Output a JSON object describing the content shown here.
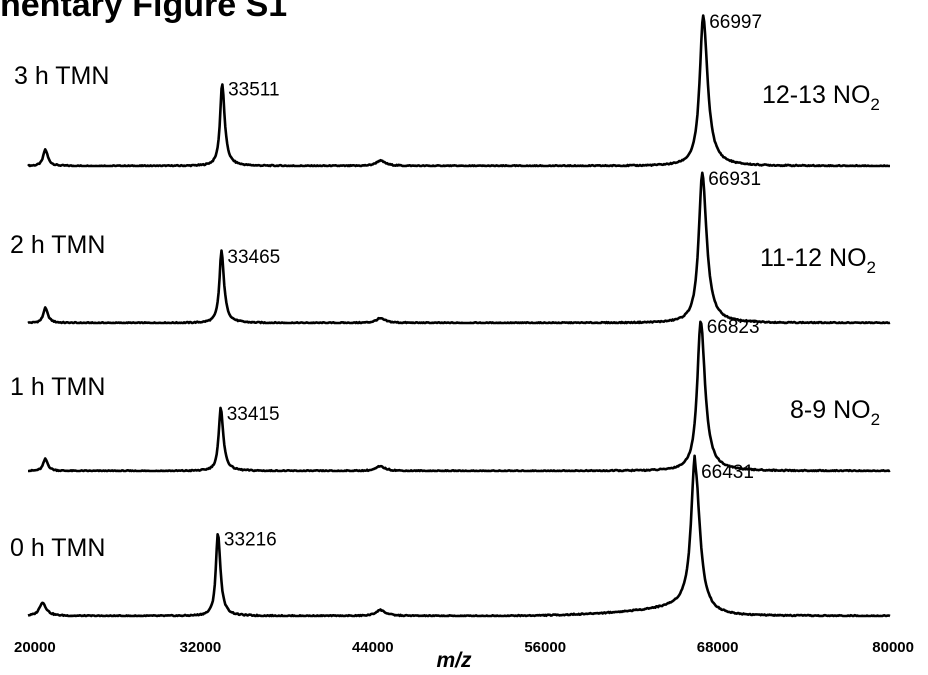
{
  "figure": {
    "title": "nentary Figure S1"
  },
  "chart_data": {
    "type": "line",
    "xlabel": "m/z",
    "xlim": [
      20000,
      80000
    ],
    "xticks": [
      "20000",
      "32000",
      "44000",
      "56000",
      "68000",
      "80000"
    ],
    "panels": [
      {
        "name": "3 h TMN",
        "nitration": "12-13 NO",
        "nitration_sub": "2",
        "peaks": [
          {
            "mz": 21200,
            "rel_height": 0.11,
            "width": 170
          },
          {
            "mz": 33511,
            "label": "33511",
            "rel_height": 0.55,
            "width": 170
          },
          {
            "mz": 44500,
            "rel_height": 0.035,
            "width": 350
          },
          {
            "mz": 66997,
            "label": "66997",
            "rel_height": 1.0,
            "width": 290
          }
        ]
      },
      {
        "name": "2 h TMN",
        "nitration": "11-12 NO",
        "nitration_sub": "2",
        "peaks": [
          {
            "mz": 21200,
            "rel_height": 0.1,
            "width": 170
          },
          {
            "mz": 33465,
            "label": "33465",
            "rel_height": 0.48,
            "width": 170
          },
          {
            "mz": 44500,
            "rel_height": 0.03,
            "width": 350
          },
          {
            "mz": 66931,
            "label": "66931",
            "rel_height": 1.0,
            "width": 290
          }
        ]
      },
      {
        "name": "1 h TMN",
        "nitration": "8-9 NO",
        "nitration_sub": "2",
        "peaks": [
          {
            "mz": 21200,
            "rel_height": 0.08,
            "width": 170
          },
          {
            "mz": 33415,
            "label": "33415",
            "rel_height": 0.42,
            "width": 170
          },
          {
            "mz": 44500,
            "rel_height": 0.03,
            "width": 350
          },
          {
            "mz": 66823,
            "label": "66823",
            "rel_height": 1.0,
            "width": 290
          }
        ]
      },
      {
        "name": "0 h TMN",
        "nitration": "",
        "nitration_sub": "",
        "peaks": [
          {
            "mz": 21000,
            "rel_height": 0.09,
            "width": 250
          },
          {
            "mz": 33216,
            "label": "33216",
            "rel_height": 0.55,
            "width": 170
          },
          {
            "mz": 44500,
            "rel_height": 0.04,
            "width": 350
          },
          {
            "mz": 66431,
            "label": "66431",
            "rel_height": 1.0,
            "width": 320
          }
        ]
      }
    ]
  }
}
